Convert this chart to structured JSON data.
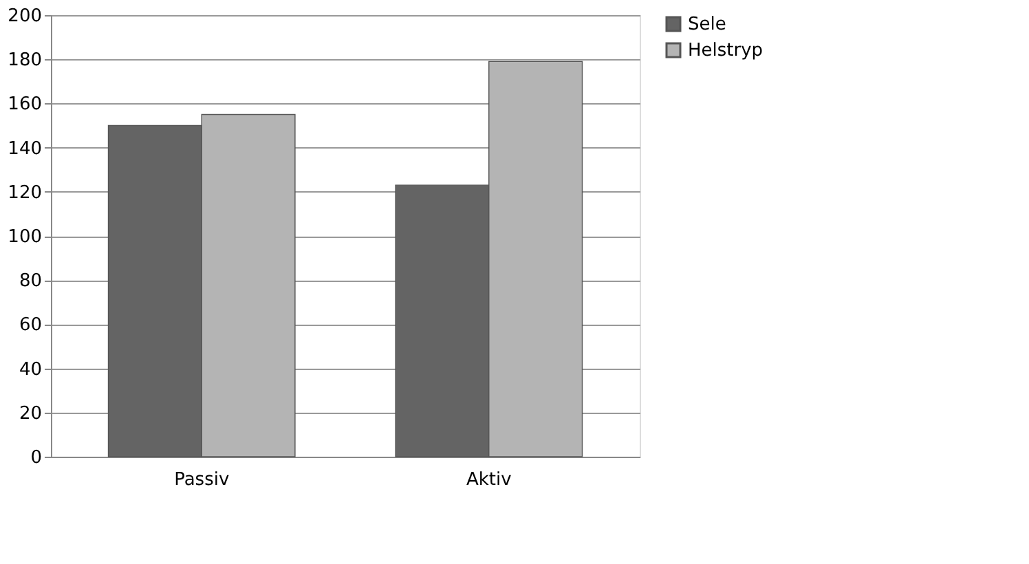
{
  "chart_data": {
    "type": "bar",
    "categories": [
      "Passiv",
      "Aktiv"
    ],
    "series": [
      {
        "name": "Sele",
        "color": "#646464",
        "values": [
          150,
          123
        ]
      },
      {
        "name": "Helstryp",
        "color": "#b4b4b4",
        "values": [
          155,
          179
        ]
      }
    ],
    "ylim": [
      0,
      200
    ],
    "yticks": [
      0,
      20,
      40,
      60,
      80,
      100,
      120,
      140,
      160,
      180,
      200
    ],
    "grid": "y",
    "legend": "right"
  }
}
